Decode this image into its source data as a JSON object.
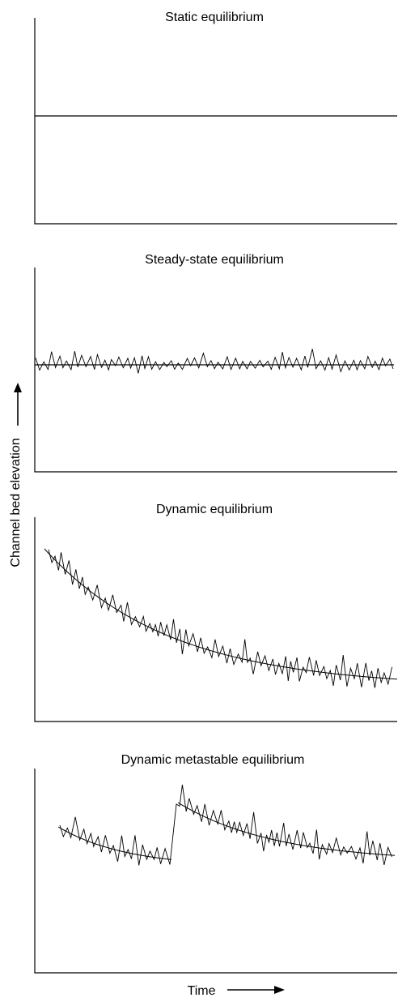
{
  "figure": {
    "y_axis_label": "Channel bed elevation",
    "x_axis_label": "Time",
    "line_color": "#000000",
    "background_color": "#ffffff"
  },
  "panels": [
    {
      "title": "Static equilibrium",
      "pattern": "flat-constant"
    },
    {
      "title": "Steady-state equilibrium",
      "pattern": "fluctuation-about-constant-mean"
    },
    {
      "title": "Dynamic equilibrium",
      "pattern": "fluctuation-about-declining-mean"
    },
    {
      "title": "Dynamic metastable equilibrium",
      "pattern": "fluctuation-about-declining-mean-with-step-jump"
    }
  ]
}
